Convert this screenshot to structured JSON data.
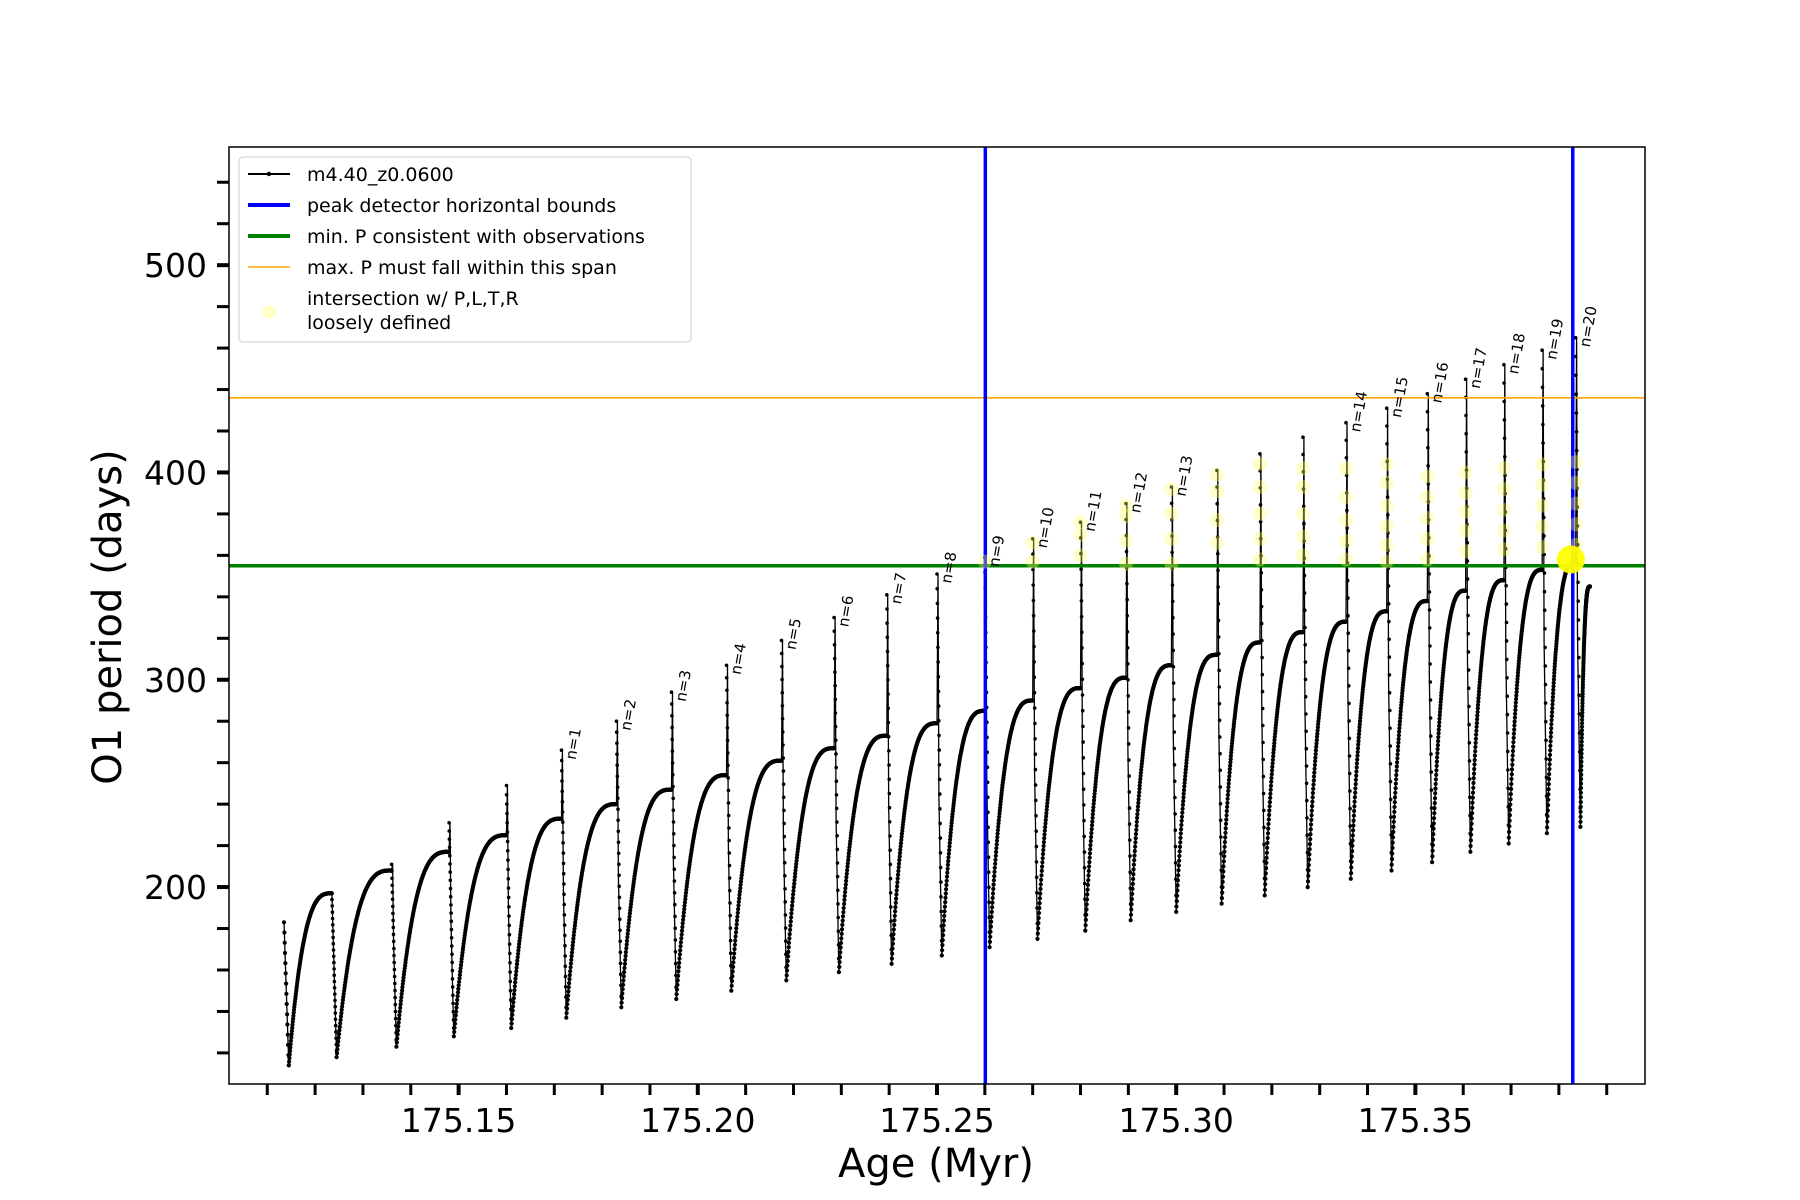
{
  "chart_data": {
    "type": "line",
    "xlabel": "Age (Myr)",
    "ylabel": "O1 period (days)",
    "xlim": [
      175.102,
      175.398
    ],
    "ylim": [
      105,
      557
    ],
    "x_ticks": [
      "175.15",
      "175.20",
      "175.25",
      "175.30",
      "175.35"
    ],
    "x_tick_values": [
      175.15,
      175.2,
      175.25,
      175.3,
      175.35
    ],
    "y_ticks": [
      "200",
      "300",
      "400",
      "500"
    ],
    "y_tick_values": [
      200,
      300,
      400,
      500
    ],
    "x_minor_step": 0.01,
    "y_minor_step": 20,
    "grid": false,
    "legend_position": "top-left",
    "colors": {
      "model": "#000000",
      "bounds": "#0000ff",
      "min_p": "#008000",
      "max_p": "#ffa500",
      "intersection": "#ffff00"
    },
    "legend": [
      {
        "key": "model",
        "label": "m4.40_z0.0600"
      },
      {
        "key": "bounds",
        "label": "peak detector horizontal bounds"
      },
      {
        "key": "min_p",
        "label": "min. P consistent with observations"
      },
      {
        "key": "max_p",
        "label": "max. P must fall within this span"
      },
      {
        "key": "intersection",
        "label": "intersection w/ P,L,T,R",
        "label2": "loosely defined"
      }
    ],
    "reference_lines": {
      "vertical_bounds": [
        175.2601,
        175.3829
      ],
      "min_p": 355,
      "max_p": 436
    },
    "start": {
      "x": 175.1135,
      "y": 183,
      "x_min": 175.1145,
      "y_min": 114
    },
    "end": {
      "x": 175.3865,
      "y": 345
    },
    "cycles": [
      {
        "x_drop": 175.1235,
        "y_pre": 197,
        "x_min": 175.1245,
        "y_min": 118
      },
      {
        "x_drop": 175.136,
        "y_pre": 208,
        "y_spike": 211,
        "x_min": 175.137,
        "y_min": 123
      },
      {
        "x_drop": 175.148,
        "y_pre": 217,
        "y_spike": 231,
        "x_min": 175.149,
        "y_min": 128
      },
      {
        "x_drop": 175.16,
        "y_pre": 225,
        "y_spike": 249,
        "x_min": 175.161,
        "y_min": 132
      },
      {
        "x_drop": 175.1715,
        "y_pre": 233,
        "y_spike": 266,
        "x_min": 175.1725,
        "y_min": 137,
        "label": "n=1"
      },
      {
        "x_drop": 175.183,
        "y_pre": 240,
        "y_spike": 280,
        "x_min": 175.184,
        "y_min": 142,
        "label": "n=2"
      },
      {
        "x_drop": 175.1945,
        "y_pre": 247,
        "y_spike": 294,
        "x_min": 175.1955,
        "y_min": 146,
        "label": "n=3"
      },
      {
        "x_drop": 175.206,
        "y_pre": 254,
        "y_spike": 307,
        "x_min": 175.207,
        "y_min": 150,
        "label": "n=4"
      },
      {
        "x_drop": 175.2175,
        "y_pre": 261,
        "y_spike": 319,
        "x_min": 175.2185,
        "y_min": 155,
        "label": "n=5"
      },
      {
        "x_drop": 175.2285,
        "y_pre": 267,
        "y_spike": 330,
        "x_min": 175.2295,
        "y_min": 159,
        "label": "n=6"
      },
      {
        "x_drop": 175.2395,
        "y_pre": 273,
        "y_spike": 341,
        "x_min": 175.2405,
        "y_min": 163,
        "label": "n=7"
      },
      {
        "x_drop": 175.25,
        "y_pre": 279,
        "y_spike": 351,
        "x_min": 175.251,
        "y_min": 167,
        "label": "n=8"
      },
      {
        "x_drop": 175.26,
        "y_pre": 285,
        "y_spike": 359,
        "x_min": 175.261,
        "y_min": 171,
        "label": "n=9"
      },
      {
        "x_drop": 175.27,
        "y_pre": 290,
        "y_spike": 368,
        "x_min": 175.271,
        "y_min": 175,
        "label": "n=10"
      },
      {
        "x_drop": 175.28,
        "y_pre": 296,
        "y_spike": 376,
        "x_min": 175.281,
        "y_min": 179,
        "label": "n=11"
      },
      {
        "x_drop": 175.2895,
        "y_pre": 301,
        "y_spike": 385,
        "x_min": 175.2905,
        "y_min": 184,
        "label": "n=12"
      },
      {
        "x_drop": 175.299,
        "y_pre": 307,
        "y_spike": 393,
        "x_min": 175.3,
        "y_min": 188,
        "label": "n=13"
      },
      {
        "x_drop": 175.3085,
        "y_pre": 312,
        "y_spike": 401,
        "x_min": 175.3095,
        "y_min": 192
      },
      {
        "x_drop": 175.3175,
        "y_pre": 318,
        "y_spike": 409,
        "x_min": 175.3185,
        "y_min": 196
      },
      {
        "x_drop": 175.3265,
        "y_pre": 323,
        "y_spike": 417,
        "x_min": 175.3275,
        "y_min": 200
      },
      {
        "x_drop": 175.3355,
        "y_pre": 328,
        "y_spike": 424,
        "x_min": 175.3365,
        "y_min": 204,
        "label": "n=14"
      },
      {
        "x_drop": 175.344,
        "y_pre": 333,
        "y_spike": 431,
        "x_min": 175.345,
        "y_min": 208,
        "label": "n=15"
      },
      {
        "x_drop": 175.3525,
        "y_pre": 338,
        "y_spike": 438,
        "x_min": 175.3535,
        "y_min": 212,
        "label": "n=16"
      },
      {
        "x_drop": 175.3605,
        "y_pre": 343,
        "y_spike": 445,
        "x_min": 175.3615,
        "y_min": 217,
        "label": "n=17"
      },
      {
        "x_drop": 175.3685,
        "y_pre": 348,
        "y_spike": 452,
        "x_min": 175.3695,
        "y_min": 221,
        "label": "n=18"
      },
      {
        "x_drop": 175.3765,
        "y_pre": 353,
        "y_spike": 459,
        "x_min": 175.3775,
        "y_min": 226,
        "label": "n=19"
      },
      {
        "x_drop": 175.3835,
        "y_pre": 357,
        "y_spike": 465,
        "x_min": 175.3845,
        "y_min": 229,
        "label": "n=20"
      }
    ],
    "intersection_points": [
      {
        "x": 175.26,
        "y": 357
      },
      {
        "x": 175.27,
        "y": 366
      },
      {
        "x": 175.27,
        "y": 357
      },
      {
        "x": 175.28,
        "y": 376
      },
      {
        "x": 175.28,
        "y": 370
      },
      {
        "x": 175.28,
        "y": 360
      },
      {
        "x": 175.2895,
        "y": 384
      },
      {
        "x": 175.2895,
        "y": 379
      },
      {
        "x": 175.2895,
        "y": 367
      },
      {
        "x": 175.2895,
        "y": 356
      },
      {
        "x": 175.299,
        "y": 392
      },
      {
        "x": 175.299,
        "y": 380
      },
      {
        "x": 175.299,
        "y": 368
      },
      {
        "x": 175.299,
        "y": 356
      },
      {
        "x": 175.3085,
        "y": 399
      },
      {
        "x": 175.3085,
        "y": 391
      },
      {
        "x": 175.3085,
        "y": 377
      },
      {
        "x": 175.3085,
        "y": 366
      },
      {
        "x": 175.3175,
        "y": 404
      },
      {
        "x": 175.3175,
        "y": 393
      },
      {
        "x": 175.3175,
        "y": 380
      },
      {
        "x": 175.3175,
        "y": 368
      },
      {
        "x": 175.3175,
        "y": 358
      },
      {
        "x": 175.3265,
        "y": 402
      },
      {
        "x": 175.3265,
        "y": 393
      },
      {
        "x": 175.3265,
        "y": 380
      },
      {
        "x": 175.3265,
        "y": 369
      },
      {
        "x": 175.3265,
        "y": 360
      },
      {
        "x": 175.3355,
        "y": 402
      },
      {
        "x": 175.3355,
        "y": 388
      },
      {
        "x": 175.3355,
        "y": 377
      },
      {
        "x": 175.3355,
        "y": 367
      },
      {
        "x": 175.3355,
        "y": 358
      },
      {
        "x": 175.344,
        "y": 404
      },
      {
        "x": 175.344,
        "y": 395
      },
      {
        "x": 175.344,
        "y": 384
      },
      {
        "x": 175.344,
        "y": 374
      },
      {
        "x": 175.344,
        "y": 365
      },
      {
        "x": 175.344,
        "y": 357
      },
      {
        "x": 175.3525,
        "y": 398
      },
      {
        "x": 175.3525,
        "y": 388
      },
      {
        "x": 175.3525,
        "y": 378
      },
      {
        "x": 175.3525,
        "y": 368
      },
      {
        "x": 175.3525,
        "y": 358
      },
      {
        "x": 175.3605,
        "y": 400
      },
      {
        "x": 175.3605,
        "y": 390
      },
      {
        "x": 175.3605,
        "y": 381
      },
      {
        "x": 175.3605,
        "y": 372
      },
      {
        "x": 175.3605,
        "y": 362
      },
      {
        "x": 175.3685,
        "y": 402
      },
      {
        "x": 175.3685,
        "y": 392
      },
      {
        "x": 175.3685,
        "y": 382
      },
      {
        "x": 175.3685,
        "y": 372
      },
      {
        "x": 175.3685,
        "y": 363
      },
      {
        "x": 175.3765,
        "y": 404
      },
      {
        "x": 175.3765,
        "y": 394
      },
      {
        "x": 175.3765,
        "y": 384
      },
      {
        "x": 175.3765,
        "y": 374
      },
      {
        "x": 175.3765,
        "y": 364
      },
      {
        "x": 175.3835,
        "y": 405
      },
      {
        "x": 175.3835,
        "y": 395
      },
      {
        "x": 175.3835,
        "y": 385
      },
      {
        "x": 175.3835,
        "y": 375
      },
      {
        "x": 175.3835,
        "y": 365
      }
    ],
    "highlight_point": {
      "x": 175.3825,
      "y": 358
    }
  }
}
